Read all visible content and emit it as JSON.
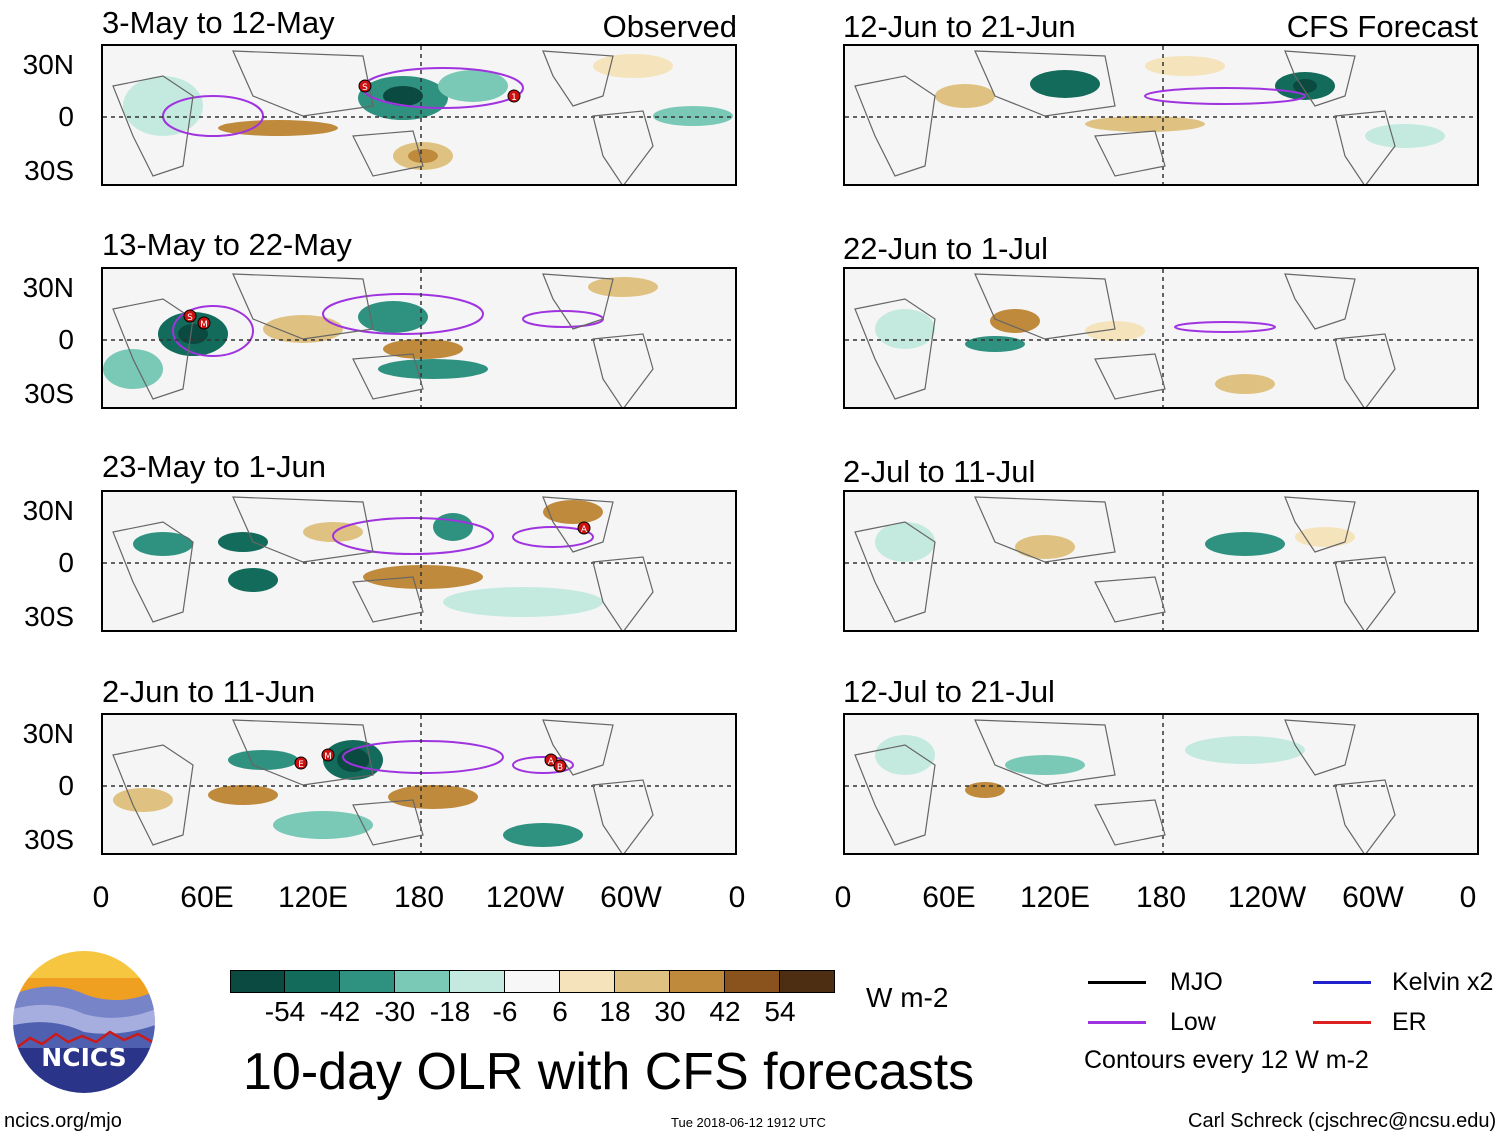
{
  "panels_observed": [
    {
      "title": "3-May to 12-May",
      "tag": "Observed",
      "storms": [
        "S",
        "1"
      ]
    },
    {
      "title": "13-May to 22-May",
      "tag": "",
      "storms": [
        "S",
        "M"
      ]
    },
    {
      "title": "23-May to 1-Jun",
      "tag": "",
      "storms": [
        "A"
      ]
    },
    {
      "title": "2-Jun to 11-Jun",
      "tag": "",
      "storms": [
        "E",
        "M",
        "A",
        "B"
      ]
    }
  ],
  "panels_forecast": [
    {
      "title": "12-Jun to 21-Jun",
      "tag": "CFS Forecast"
    },
    {
      "title": "22-Jun to 1-Jul",
      "tag": ""
    },
    {
      "title": "2-Jul to 11-Jul",
      "tag": ""
    },
    {
      "title": "12-Jul to 21-Jul",
      "tag": ""
    }
  ],
  "lat_labels": [
    "30N",
    "0",
    "30S"
  ],
  "lon_labels": [
    "0",
    "60E",
    "120E",
    "180",
    "120W",
    "60W",
    "0"
  ],
  "colorbar": {
    "labels": [
      "-54",
      "-42",
      "-30",
      "-18",
      "-6",
      "6",
      "18",
      "30",
      "42",
      "54"
    ],
    "colors": [
      "#0b4a40",
      "#136b5b",
      "#2f9180",
      "#79c9b6",
      "#c4eadf",
      "#f7f7f7",
      "#f5e4bb",
      "#dfc282",
      "#bf8a3c",
      "#8a531e",
      "#4e2e12"
    ],
    "units": "W m-2"
  },
  "legend": {
    "items": [
      {
        "label": "MJO",
        "color": "#000000"
      },
      {
        "label": "Kelvin x2",
        "color": "#2222cc"
      },
      {
        "label": "Low",
        "color": "#a033e0"
      },
      {
        "label": "ER",
        "color": "#dd2020"
      }
    ],
    "note": "Contours every 12 W m-2"
  },
  "logo_text": "NCICS",
  "main_title": "10-day OLR with CFS forecasts",
  "footer": {
    "url": "ncics.org/mjo",
    "timestamp": "Tue 2018-06-12 1912 UTC",
    "credit": "Carl Schreck (cjschrec@ncsu.edu)"
  }
}
